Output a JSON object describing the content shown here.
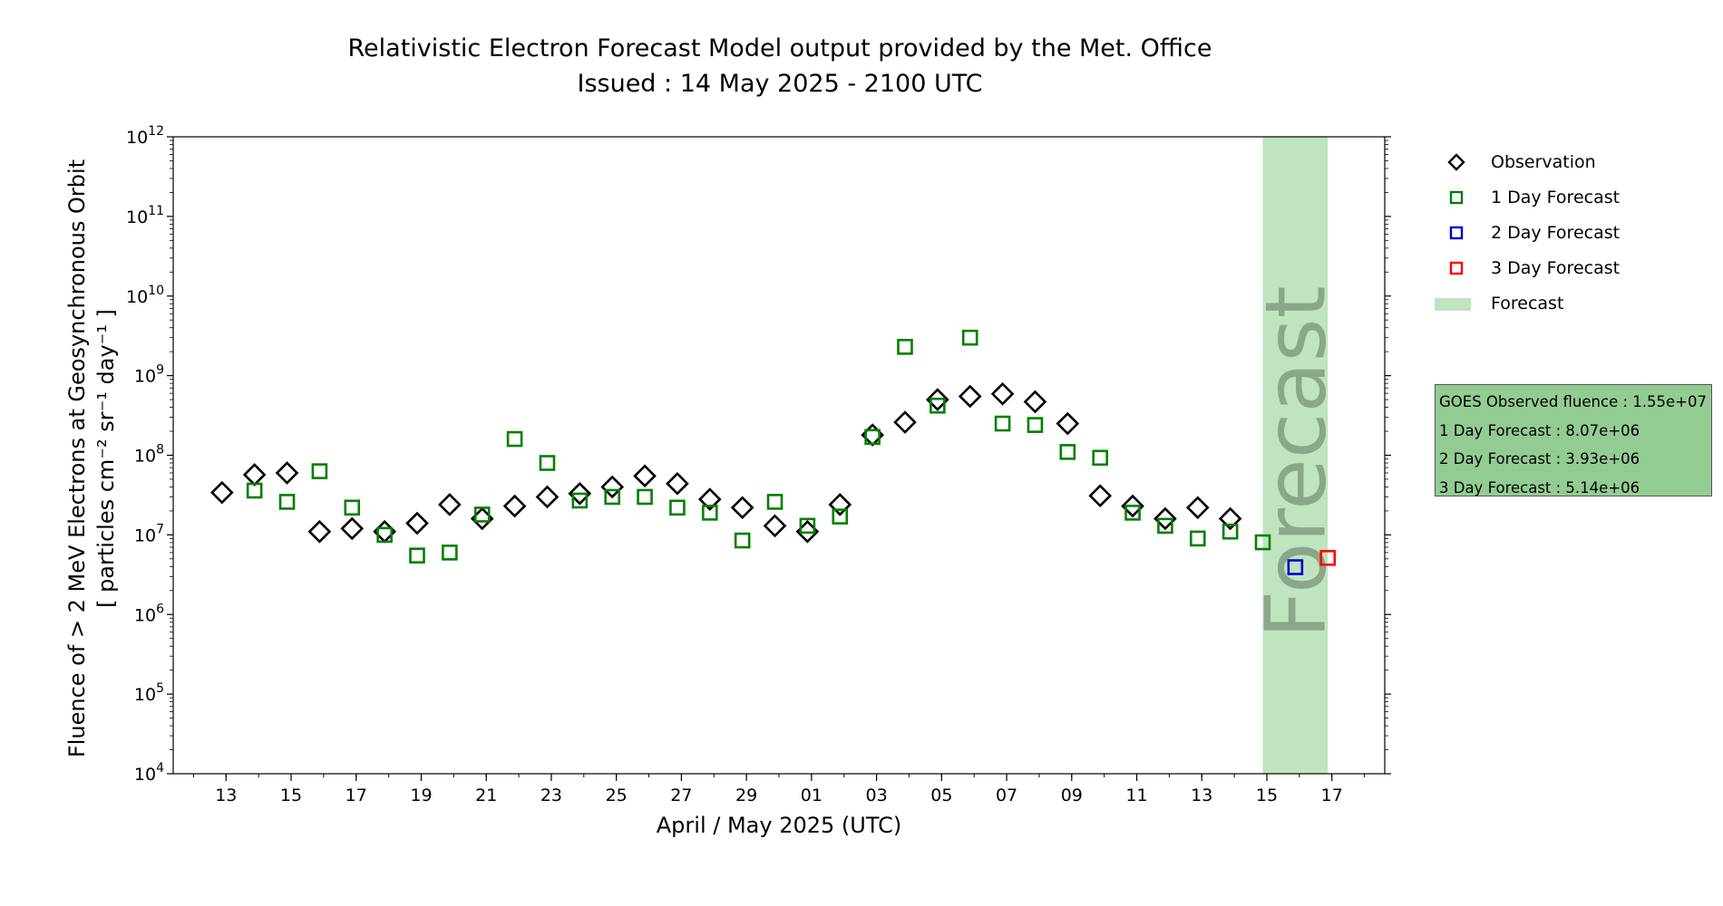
{
  "chart_data": {
    "type": "scatter",
    "title": "Relativistic Electron Forecast Model output provided by the Met. Office",
    "subtitle": "Issued : 14 May 2025 - 2100 UTC",
    "xlabel": "April / May 2025 (UTC)",
    "ylabel_line1": "Fluence of > 2 MeV Electrons at Geosynchronous Orbit",
    "ylabel_line2": "[ particles cm⁻² sr⁻¹ day⁻¹ ]",
    "yscale": "log",
    "ylim": [
      10000.0,
      1000000000000.0
    ],
    "y_ticks": [
      4,
      5,
      6,
      7,
      8,
      9,
      10,
      11,
      12
    ],
    "xlim": [
      "2025-04-11T09:00",
      "2025-05-18T15:00"
    ],
    "x_tick_labels": [
      {
        "date": "2025-04-13",
        "label": "13"
      },
      {
        "date": "2025-04-15",
        "label": "15"
      },
      {
        "date": "2025-04-17",
        "label": "17"
      },
      {
        "date": "2025-04-19",
        "label": "19"
      },
      {
        "date": "2025-04-21",
        "label": "21"
      },
      {
        "date": "2025-04-23",
        "label": "23"
      },
      {
        "date": "2025-04-25",
        "label": "25"
      },
      {
        "date": "2025-04-27",
        "label": "27"
      },
      {
        "date": "2025-04-29",
        "label": "29"
      },
      {
        "date": "2025-05-01",
        "label": "01"
      },
      {
        "date": "2025-05-03",
        "label": "03"
      },
      {
        "date": "2025-05-05",
        "label": "05"
      },
      {
        "date": "2025-05-07",
        "label": "07"
      },
      {
        "date": "2025-05-09",
        "label": "09"
      },
      {
        "date": "2025-05-11",
        "label": "11"
      },
      {
        "date": "2025-05-13",
        "label": "13"
      },
      {
        "date": "2025-05-15",
        "label": "15"
      },
      {
        "date": "2025-05-17",
        "label": "17"
      }
    ],
    "forecast_band": {
      "x": [
        "2025-05-14T21:00",
        "2025-05-16T21:00"
      ],
      "label": "Forecast",
      "color": "#c0e4bf"
    },
    "series": [
      {
        "name": "Observation",
        "marker": "diamond",
        "color": "#000000",
        "points": [
          {
            "x": "2025-04-12T21:00",
            "y": 34000000.0
          },
          {
            "x": "2025-04-13T21:00",
            "y": 57000000.0
          },
          {
            "x": "2025-04-14T21:00",
            "y": 60000000.0
          },
          {
            "x": "2025-04-15T21:00",
            "y": 11000000.0
          },
          {
            "x": "2025-04-16T21:00",
            "y": 12000000.0
          },
          {
            "x": "2025-04-17T21:00",
            "y": 11000000.0
          },
          {
            "x": "2025-04-18T21:00",
            "y": 14000000.0
          },
          {
            "x": "2025-04-19T21:00",
            "y": 24000000.0
          },
          {
            "x": "2025-04-20T21:00",
            "y": 16000000.0
          },
          {
            "x": "2025-04-21T21:00",
            "y": 23000000.0
          },
          {
            "x": "2025-04-22T21:00",
            "y": 30000000.0
          },
          {
            "x": "2025-04-23T21:00",
            "y": 33000000.0
          },
          {
            "x": "2025-04-24T21:00",
            "y": 40000000.0
          },
          {
            "x": "2025-04-25T21:00",
            "y": 55000000.0
          },
          {
            "x": "2025-04-26T21:00",
            "y": 44000000.0
          },
          {
            "x": "2025-04-27T21:00",
            "y": 28000000.0
          },
          {
            "x": "2025-04-28T21:00",
            "y": 22000000.0
          },
          {
            "x": "2025-04-29T21:00",
            "y": 13000000.0
          },
          {
            "x": "2025-04-30T21:00",
            "y": 11000000.0
          },
          {
            "x": "2025-05-01T21:00",
            "y": 24000000.0
          },
          {
            "x": "2025-05-02T21:00",
            "y": 180000000.0
          },
          {
            "x": "2025-05-03T21:00",
            "y": 260000000.0
          },
          {
            "x": "2025-05-04T21:00",
            "y": 500000000.0
          },
          {
            "x": "2025-05-05T21:00",
            "y": 550000000.0
          },
          {
            "x": "2025-05-06T21:00",
            "y": 590000000.0
          },
          {
            "x": "2025-05-07T21:00",
            "y": 470000000.0
          },
          {
            "x": "2025-05-08T21:00",
            "y": 250000000.0
          },
          {
            "x": "2025-05-09T21:00",
            "y": 31000000.0
          },
          {
            "x": "2025-05-10T21:00",
            "y": 23000000.0
          },
          {
            "x": "2025-05-11T21:00",
            "y": 16000000.0
          },
          {
            "x": "2025-05-12T21:00",
            "y": 22000000.0
          },
          {
            "x": "2025-05-13T21:00",
            "y": 16000000.0
          }
        ]
      },
      {
        "name": "1 Day Forecast",
        "marker": "square",
        "color": "#008000",
        "points": [
          {
            "x": "2025-04-13T21:00",
            "y": 36000000.0
          },
          {
            "x": "2025-04-14T21:00",
            "y": 26000000.0
          },
          {
            "x": "2025-04-15T21:00",
            "y": 63000000.0
          },
          {
            "x": "2025-04-16T21:00",
            "y": 22000000.0
          },
          {
            "x": "2025-04-17T21:00",
            "y": 10000000.0
          },
          {
            "x": "2025-04-18T21:00",
            "y": 5500000.0
          },
          {
            "x": "2025-04-19T21:00",
            "y": 6000000.0
          },
          {
            "x": "2025-04-20T21:00",
            "y": 18000000.0
          },
          {
            "x": "2025-04-21T21:00",
            "y": 160000000.0
          },
          {
            "x": "2025-04-22T21:00",
            "y": 80000000.0
          },
          {
            "x": "2025-04-23T21:00",
            "y": 27000000.0
          },
          {
            "x": "2025-04-24T21:00",
            "y": 30000000.0
          },
          {
            "x": "2025-04-25T21:00",
            "y": 30000000.0
          },
          {
            "x": "2025-04-26T21:00",
            "y": 22000000.0
          },
          {
            "x": "2025-04-27T21:00",
            "y": 19000000.0
          },
          {
            "x": "2025-04-28T21:00",
            "y": 8500000.0
          },
          {
            "x": "2025-04-29T21:00",
            "y": 26000000.0
          },
          {
            "x": "2025-04-30T21:00",
            "y": 13000000.0
          },
          {
            "x": "2025-05-01T21:00",
            "y": 17000000.0
          },
          {
            "x": "2025-05-02T21:00",
            "y": 170000000.0
          },
          {
            "x": "2025-05-03T21:00",
            "y": 2300000000.0
          },
          {
            "x": "2025-05-04T21:00",
            "y": 420000000.0
          },
          {
            "x": "2025-05-05T21:00",
            "y": 3000000000.0
          },
          {
            "x": "2025-05-06T21:00",
            "y": 250000000.0
          },
          {
            "x": "2025-05-07T21:00",
            "y": 240000000.0
          },
          {
            "x": "2025-05-08T21:00",
            "y": 110000000.0
          },
          {
            "x": "2025-05-09T21:00",
            "y": 93000000.0
          },
          {
            "x": "2025-05-10T21:00",
            "y": 19000000.0
          },
          {
            "x": "2025-05-11T21:00",
            "y": 13000000.0
          },
          {
            "x": "2025-05-12T21:00",
            "y": 9000000.0
          },
          {
            "x": "2025-05-13T21:00",
            "y": 11000000.0
          },
          {
            "x": "2025-05-14T21:00",
            "y": 8070000.0
          }
        ]
      },
      {
        "name": "2 Day Forecast",
        "marker": "square",
        "color": "#0000cc",
        "points": [
          {
            "x": "2025-05-15T21:00",
            "y": 3930000.0
          }
        ]
      },
      {
        "name": "3 Day Forecast",
        "marker": "square",
        "color": "#ff0000",
        "points": [
          {
            "x": "2025-05-16T21:00",
            "y": 5140000.0
          }
        ]
      }
    ],
    "legend": {
      "placement": "outside-right-top",
      "items": [
        {
          "label": "Observation",
          "marker": "diamond",
          "color": "#000000"
        },
        {
          "label": "1 Day Forecast",
          "marker": "square",
          "color": "#008000"
        },
        {
          "label": "2 Day Forecast",
          "marker": "square",
          "color": "#0000cc"
        },
        {
          "label": "3 Day Forecast",
          "marker": "square",
          "color": "#ff0000"
        },
        {
          "label": "Forecast",
          "marker": "band",
          "color": "#c0e4bf"
        }
      ]
    },
    "annotation_box": {
      "background": "#93cc93",
      "lines": [
        "GOES Observed fluence : 1.55e+07",
        "1 Day Forecast : 8.07e+06",
        "2 Day Forecast : 3.93e+06",
        "3 Day Forecast : 5.14e+06"
      ]
    }
  }
}
